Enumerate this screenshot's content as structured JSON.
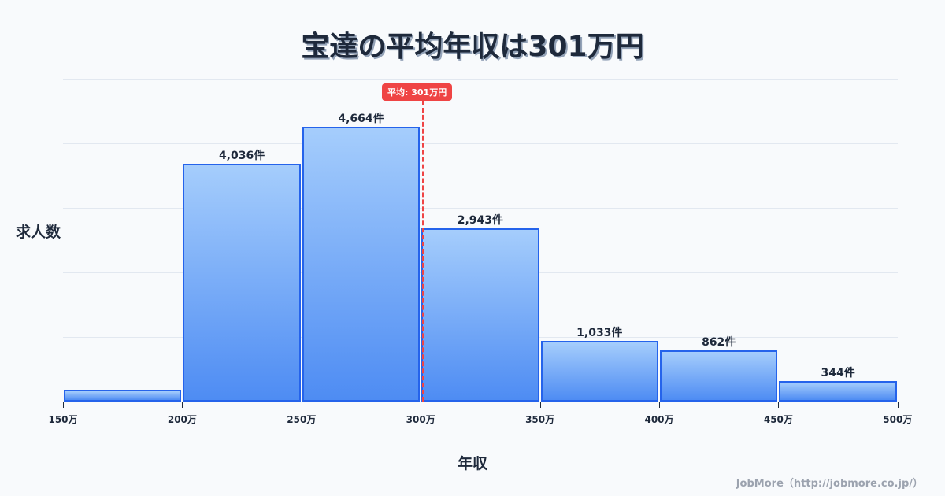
{
  "title": "宝達の平均年収は301万円",
  "mean_badge": "平均: 301万円",
  "y_axis_label": "求人数",
  "x_axis_label": "年収",
  "credit": "JobMore（http://jobmore.co.jp/）",
  "ticks": [
    "150万",
    "200万",
    "250万",
    "300万",
    "350万",
    "400万",
    "450万",
    "500万"
  ],
  "bars": [
    {
      "range": "150万-200万",
      "value": 200,
      "label": ""
    },
    {
      "range": "200万-250万",
      "value": 4036,
      "label": "4,036件"
    },
    {
      "range": "250万-300万",
      "value": 4664,
      "label": "4,664件"
    },
    {
      "range": "300万-350万",
      "value": 2943,
      "label": "2,943件"
    },
    {
      "range": "350万-400万",
      "value": 1033,
      "label": "1,033件"
    },
    {
      "range": "400万-450万",
      "value": 862,
      "label": "862件"
    },
    {
      "range": "450万-500万",
      "value": 344,
      "label": "344件"
    }
  ],
  "colors": {
    "bar_border": "#2563eb",
    "bar_top": "#a5cdfc",
    "bar_bottom": "#4e8cf3",
    "mean": "#ef4444"
  },
  "chart_data": {
    "type": "bar",
    "title": "宝達の平均年収は301万円",
    "xlabel": "年収",
    "ylabel": "求人数",
    "categories": [
      "150万-200万",
      "200万-250万",
      "250万-300万",
      "300万-350万",
      "350万-400万",
      "400万-450万",
      "450万-500万"
    ],
    "values": [
      200,
      4036,
      4664,
      2943,
      1033,
      862,
      344
    ],
    "x_ticks": [
      "150万",
      "200万",
      "250万",
      "300万",
      "350万",
      "400万",
      "450万",
      "500万"
    ],
    "annotations": [
      {
        "type": "vline",
        "x": 301,
        "label": "平均: 301万円",
        "color": "#ef4444",
        "style": "dashed"
      }
    ],
    "grid": true,
    "legend": false
  }
}
